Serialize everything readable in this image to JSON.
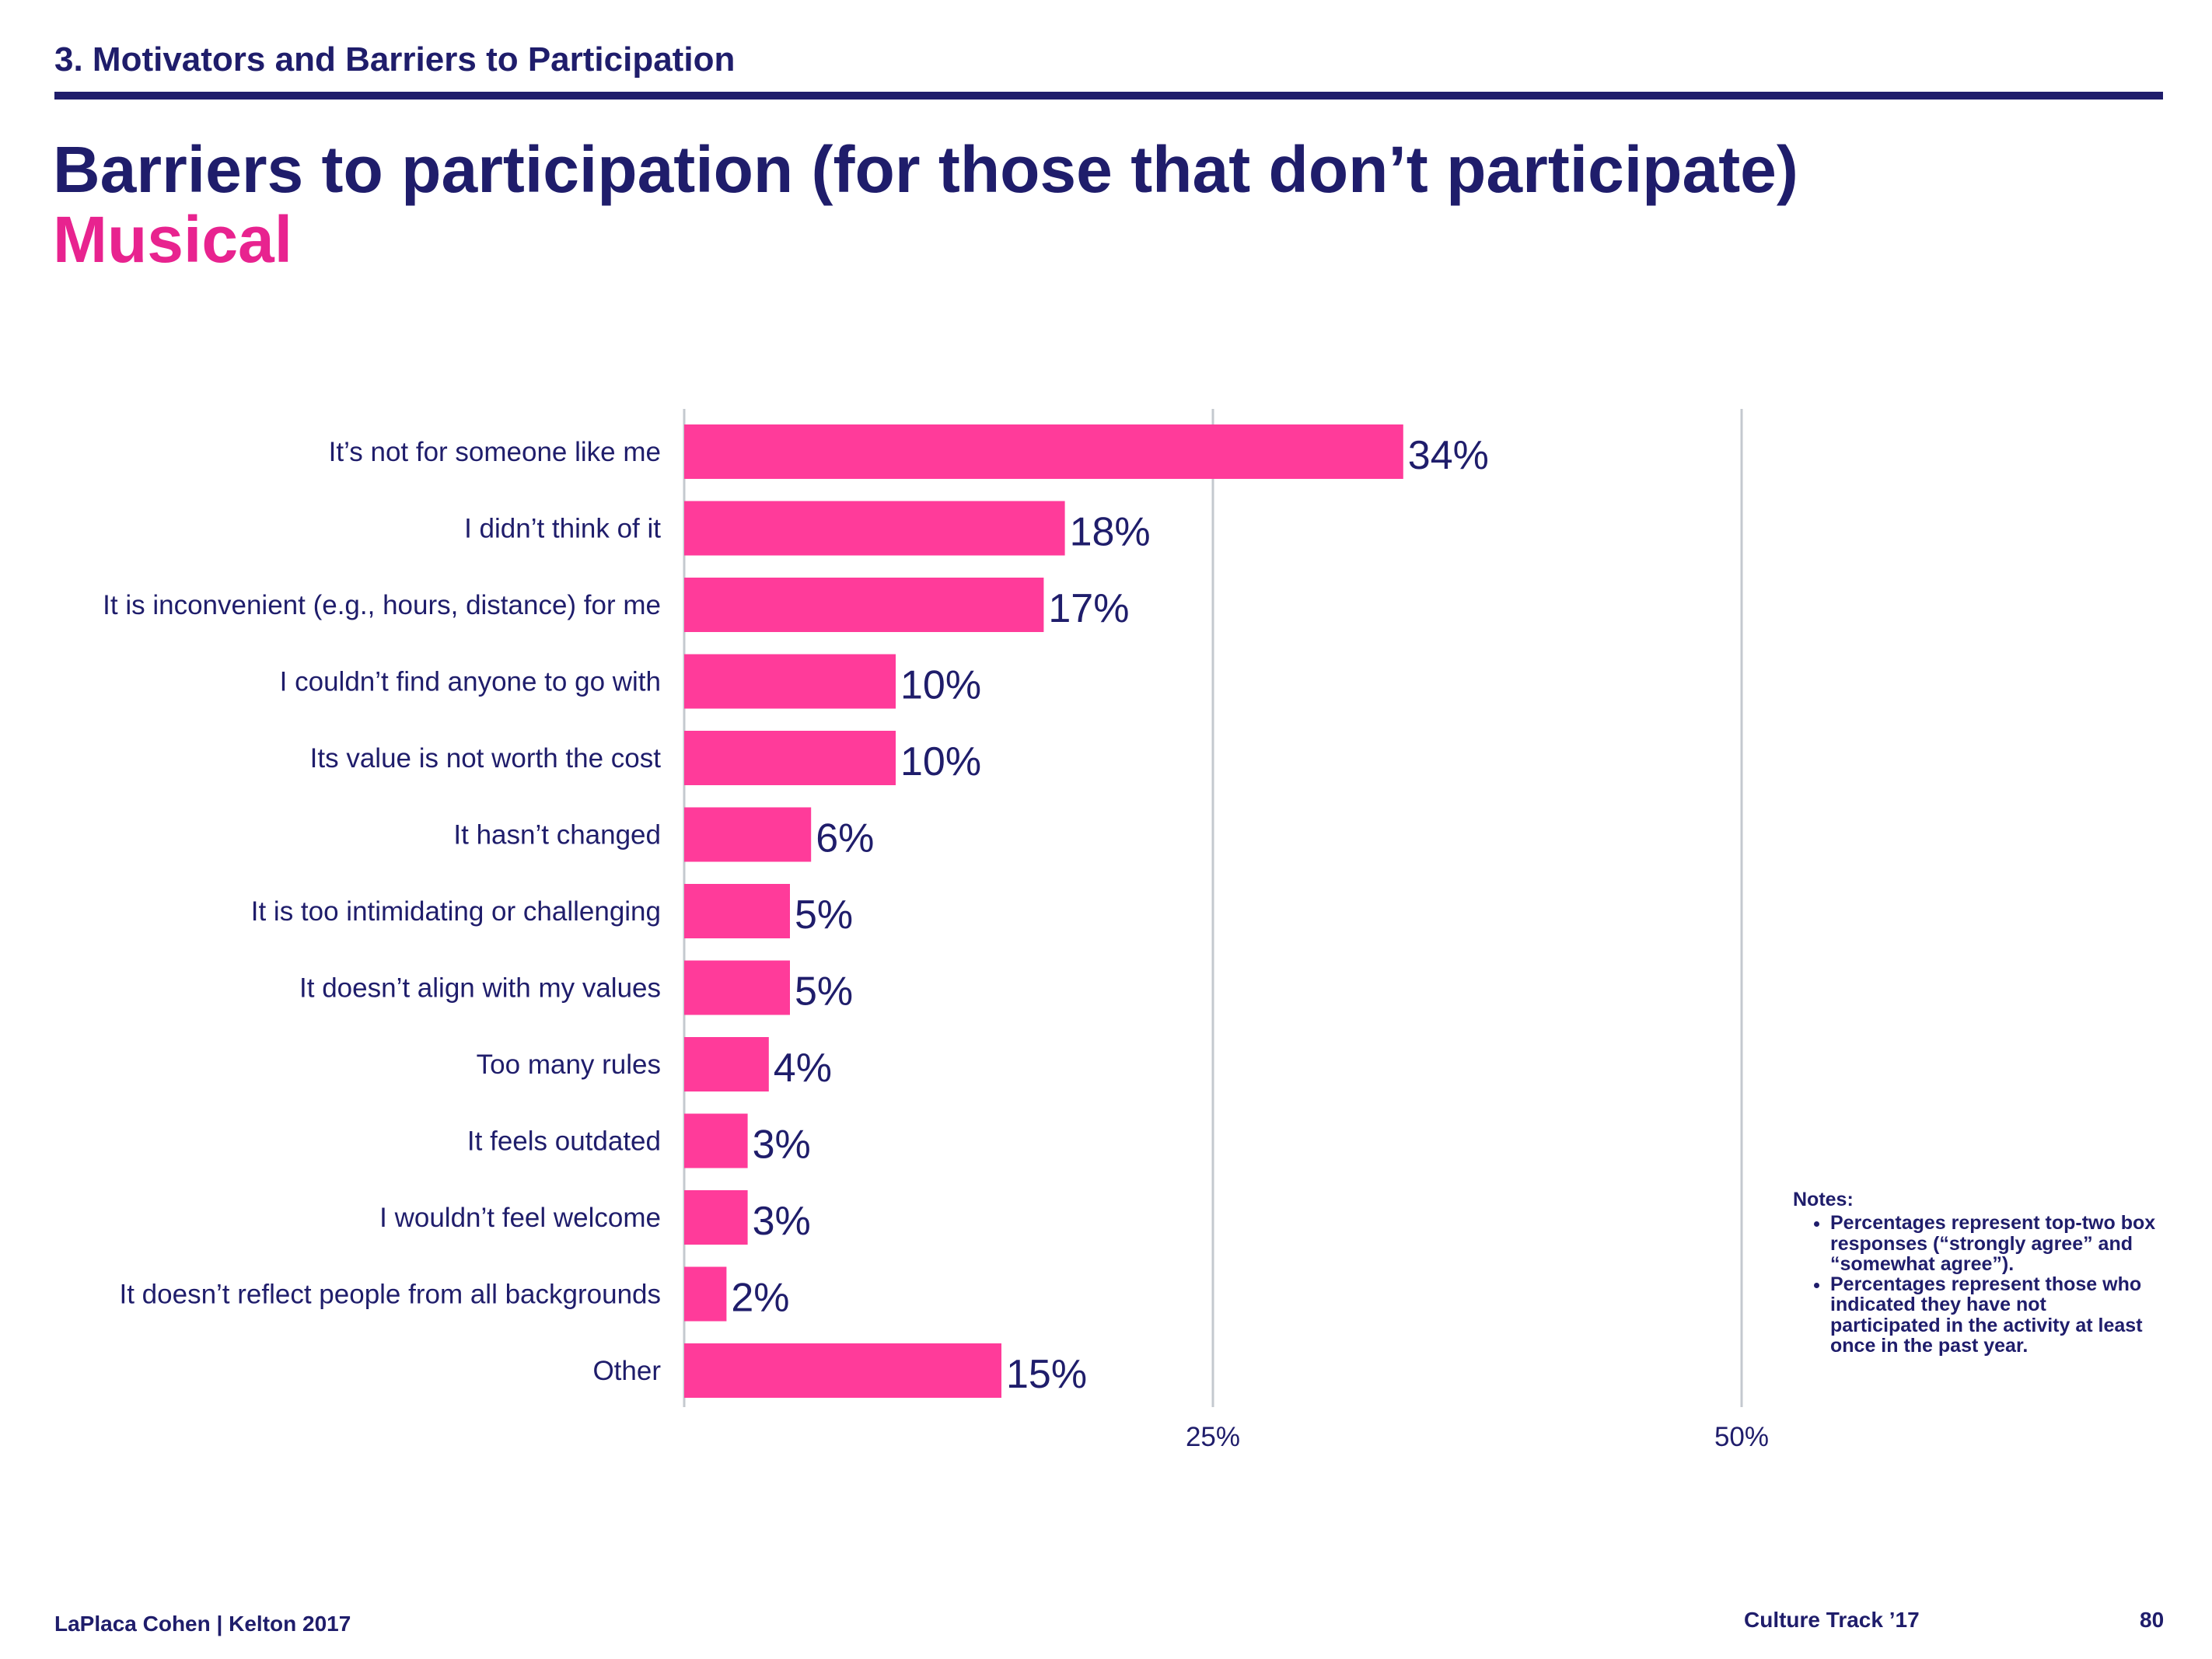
{
  "header": {
    "section": "3. Motivators and Barriers to Participation",
    "title": "Barriers to participation (for those that don’t participate)",
    "subtitle": "Musical"
  },
  "colors": {
    "bar": "#ff3b9a",
    "text": "#1f1d6b",
    "grid": "#c4c9cf",
    "accent": "#e8238f"
  },
  "chart_data": {
    "type": "bar",
    "orientation": "horizontal",
    "categories": [
      "It’s not for someone like me",
      "I didn’t think of it",
      "It is inconvenient (e.g., hours, distance) for me",
      "I couldn’t find anyone to go with",
      "Its value is not worth the cost",
      "It hasn’t changed",
      "It is too intimidating or challenging",
      "It doesn’t align with my values",
      "Too many rules",
      "It feels outdated",
      "I wouldn’t feel welcome",
      "It doesn’t reflect people from all backgrounds",
      "Other"
    ],
    "values": [
      34,
      18,
      17,
      10,
      10,
      6,
      5,
      5,
      4,
      3,
      3,
      2,
      15
    ],
    "value_labels": [
      "34%",
      "18%",
      "17%",
      "10%",
      "10%",
      "6%",
      "5%",
      "5%",
      "4%",
      "3%",
      "3%",
      "2%",
      "15%"
    ],
    "xlim": [
      0,
      50
    ],
    "xticks": [
      25,
      50
    ],
    "xtick_labels": [
      "25%",
      "50%"
    ],
    "grid": true
  },
  "notes": {
    "title": "Notes:",
    "items": [
      "Percentages represent top-two box responses (“strongly agree” and “somewhat agree”).",
      "Percentages represent those who indicated they have not participated in the activity at least once in the past year."
    ]
  },
  "footer": {
    "left": "LaPlaca Cohen | Kelton 2017",
    "center": "Culture Track ’17",
    "page": "80"
  }
}
